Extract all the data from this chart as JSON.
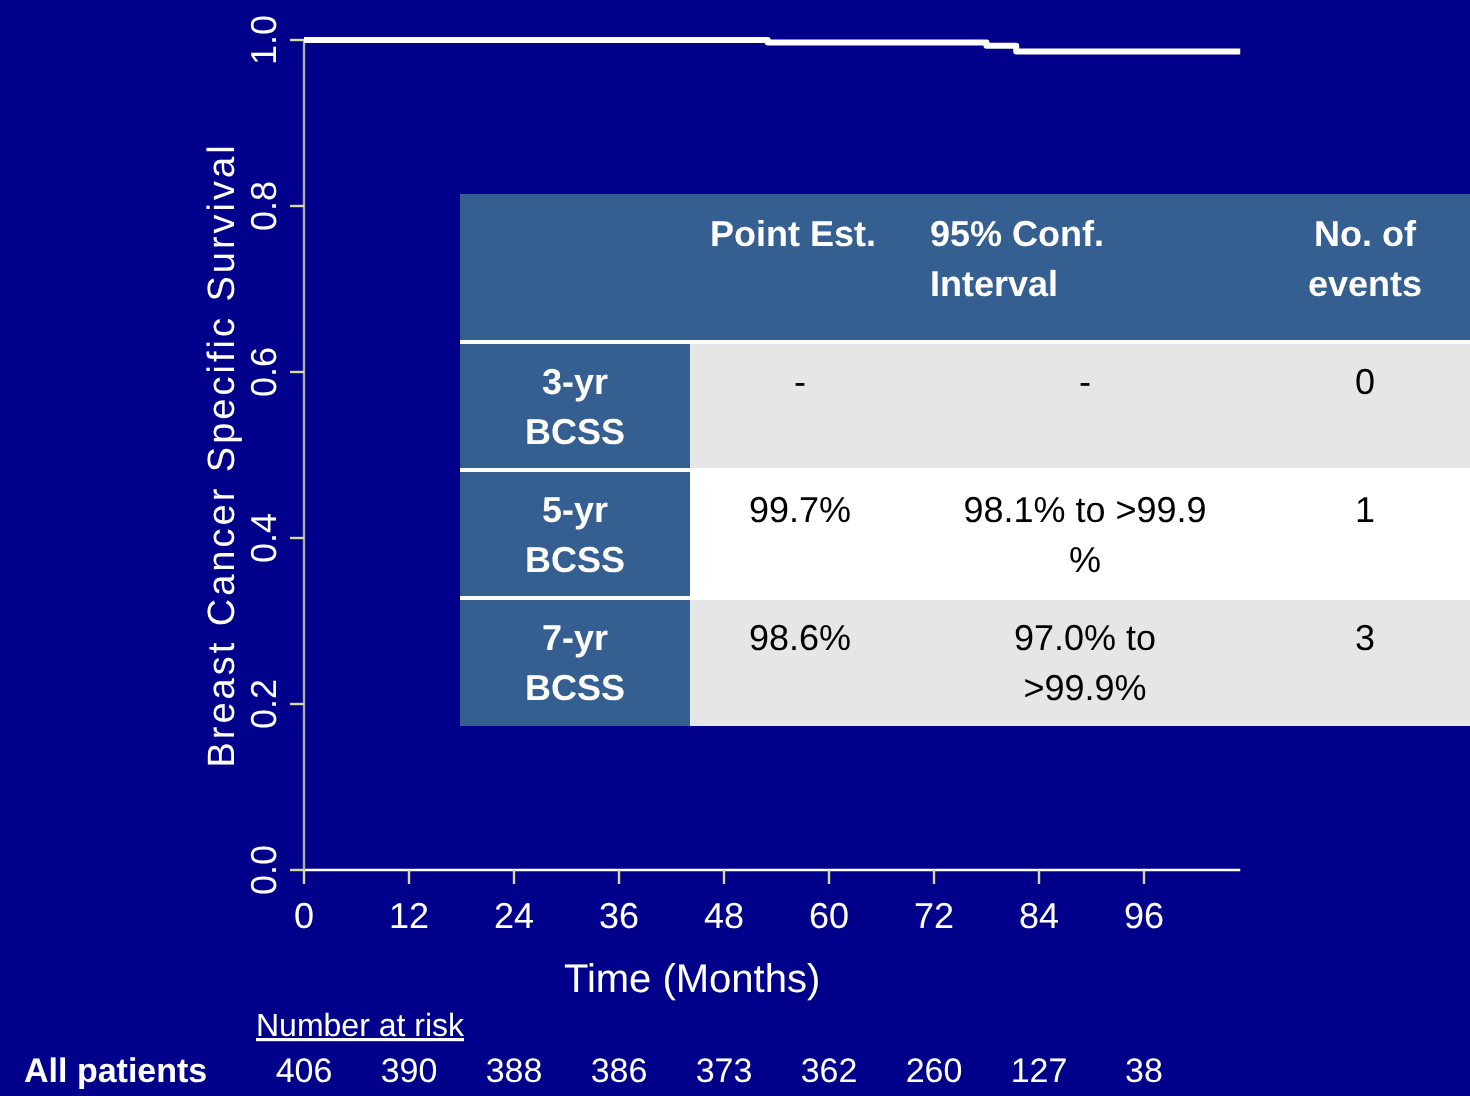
{
  "chart_data": {
    "type": "step",
    "xlabel": "Time (Months)",
    "ylabel": "Breast Cancer Specific Survival",
    "xlim": [
      0,
      107
    ],
    "xticks": [
      0,
      12,
      24,
      36,
      48,
      60,
      72,
      84,
      96
    ],
    "ylim": [
      0,
      1
    ],
    "yticks": [
      {
        "value": 0,
        "label": "0.0"
      },
      {
        "value": 0.2,
        "label": "0.2"
      },
      {
        "value": 0.4,
        "label": "0.4"
      },
      {
        "value": 0.6,
        "label": "0.6"
      },
      {
        "value": 0.8,
        "label": "0.8"
      },
      {
        "value": 1,
        "label": "1.0"
      }
    ],
    "grid": false,
    "marker": "none",
    "line_style": "solid",
    "series": [
      {
        "color": "#ffffff",
        "x": [
          0,
          53,
          78,
          81.4,
          107
        ],
        "values": [
          1,
          0.997,
          0.993,
          0.986,
          0.986
        ]
      }
    ],
    "annotations": [
      "Point Est.",
      "95% Conf. Interval",
      "No. of events",
      "3-yr BCSS",
      "-",
      "-",
      "0",
      "5-yr BCSS",
      "99.7%",
      "98.1% to >99.9 %",
      "1",
      "7-yr BCSS",
      "98.6%",
      "97.0% to >99.9%",
      "3",
      "Number at risk",
      "All patients",
      "406",
      "390",
      "388",
      "386",
      "373",
      "362",
      "260",
      "127",
      "38"
    ]
  }
}
